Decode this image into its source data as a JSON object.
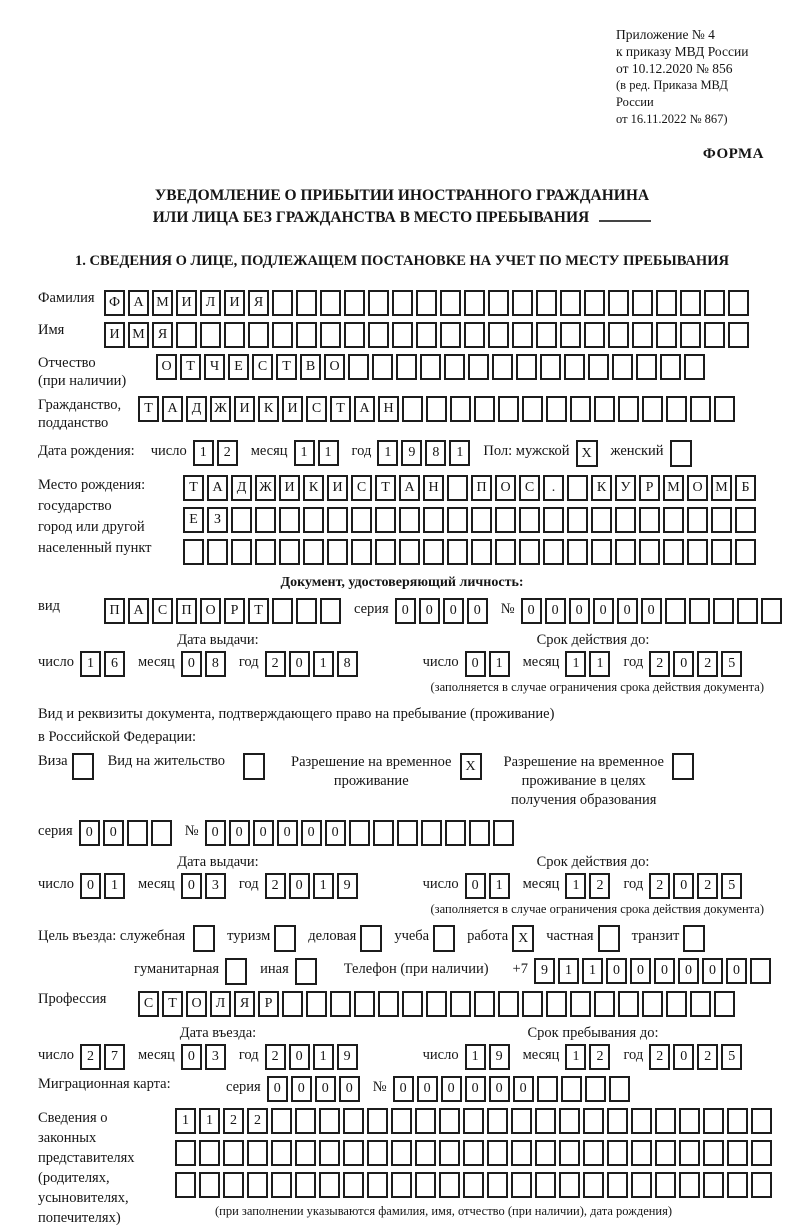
{
  "header": {
    "line1": "Приложение № 4",
    "line2": "к приказу МВД России",
    "line3": "от 10.12.2020 № 856",
    "line4": "(в ред. Приказа МВД России",
    "line5": "от 16.11.2022 № 867)",
    "form_label": "ФОРМА"
  },
  "title": {
    "line1": "УВЕДОМЛЕНИЕ О ПРИБЫТИИ ИНОСТРАННОГО ГРАЖДАНИНА",
    "line2": "ИЛИ ЛИЦА БЕЗ ГРАЖДАНСТВА В МЕСТО ПРЕБЫВАНИЯ"
  },
  "section1_heading": "1. СВЕДЕНИЯ О ЛИЦЕ, ПОДЛЕЖАЩЕМ ПОСТАНОВКЕ НА УЧЕТ ПО МЕСТУ ПРЕБЫВАНИЯ",
  "labels": {
    "surname": "Фамилия",
    "name": "Имя",
    "patronymic_1": "Отчество",
    "patronymic_2": "(при наличии)",
    "citizenship_1": "Гражданство,",
    "citizenship_2": "подданство",
    "birth_date": "Дата рождения:",
    "day": "число",
    "month": "месяц",
    "year": "год",
    "gender_male": "Пол: мужской",
    "gender_female": "женский",
    "birth_place": [
      "Место рождения:",
      "государство",
      "город или другой",
      "населенный пункт"
    ],
    "doc_header": "Документ, удостоверяющий личность:",
    "doc_type": "вид",
    "series": "серия",
    "number": "№",
    "issue_date": "Дата выдачи:",
    "valid_until": "Срок действия до:",
    "valid_note": "(заполняется в случае ограничения срока действия документа)",
    "residence_1": "Вид и реквизиты документа, подтверждающего право на пребывание (проживание)",
    "residence_2": "в Российской Федерации:",
    "visa": "Виза",
    "residence_permit": "Вид на жительство",
    "temp_permit_1": "Разрешение на временное",
    "temp_permit_2": "проживание",
    "edu_permit_1": "Разрешение на временное",
    "edu_permit_2": "проживание в целях",
    "edu_permit_3": "получения образования",
    "purpose": "Цель въезда: служебная",
    "tourism": "туризм",
    "business": "деловая",
    "study": "учеба",
    "work": "работа",
    "private": "частная",
    "transit": "транзит",
    "humanitarian": "гуманитарная",
    "other": "иная",
    "phone": "Телефон (при наличии)",
    "phone_prefix": "+7",
    "profession": "Профессия",
    "entry_date": "Дата въезда:",
    "stay_until": "Срок пребывания до:",
    "migration_card": "Миграционная карта:",
    "representatives": [
      "Сведения о",
      "законных",
      "представителях",
      "(родителях,",
      "усыновителях,",
      "попечителях)"
    ],
    "rep_note": "(при заполнении указываются фамилия, имя, отчество (при наличии), дата рождения)"
  },
  "fields": {
    "surname": {
      "value": "ФАМИЛИЯ",
      "boxes": 27
    },
    "name": {
      "value": "ИМЯ",
      "boxes": 27
    },
    "patronymic": {
      "value": "ОТЧЕСТВО",
      "boxes": 23
    },
    "citizenship": {
      "value": "ТАДЖИКИСТАН",
      "boxes": 25
    },
    "birth_place_row1": {
      "value": "ТАДЖИКИСТАН ПОС. КУРМОМБ",
      "boxes": 24
    },
    "birth_place_row2": {
      "value": "ЕЗ",
      "boxes": 24
    },
    "birth_place_row3": {
      "value": "",
      "boxes": 24
    },
    "doc_type": {
      "value": "ПАСПОРТ",
      "boxes": 10
    },
    "doc_series": {
      "value": "0000",
      "boxes": 4
    },
    "doc_number": {
      "value": "000000",
      "boxes": 11
    },
    "permit_series": {
      "value": "00",
      "boxes": 4
    },
    "permit_number": {
      "value": "000000",
      "boxes": 13
    },
    "phone": {
      "value": "911000000",
      "boxes": 10
    },
    "profession": {
      "value": "СТОЛЯР",
      "boxes": 25
    },
    "mk_series": {
      "value": "0000",
      "boxes": 4
    },
    "mk_number": {
      "value": "000000",
      "boxes": 10
    },
    "rep_row1": {
      "value": "1122",
      "boxes": 25
    },
    "rep_row2": {
      "value": "",
      "boxes": 25
    },
    "rep_row3": {
      "value": "",
      "boxes": 25
    }
  },
  "dates": {
    "birth": {
      "day": "12",
      "month": "11",
      "year": "1981"
    },
    "doc_issue": {
      "day": "16",
      "month": "08",
      "year": "2018"
    },
    "doc_valid": {
      "day": "01",
      "month": "11",
      "year": "2025"
    },
    "permit_issue": {
      "day": "01",
      "month": "03",
      "year": "2019"
    },
    "permit_valid": {
      "day": "01",
      "month": "12",
      "year": "2025"
    },
    "entry": {
      "day": "27",
      "month": "03",
      "year": "2019"
    },
    "stay": {
      "day": "19",
      "month": "12",
      "year": "2025"
    }
  },
  "checks": {
    "male": true,
    "female": false,
    "visa": false,
    "residence_permit": false,
    "temp_permit": true,
    "edu_permit": false,
    "official": false,
    "tourism": false,
    "business": false,
    "study": false,
    "work": true,
    "private": false,
    "transit": false,
    "humanitarian": false,
    "other": false
  },
  "marks": {
    "checked": "X"
  }
}
